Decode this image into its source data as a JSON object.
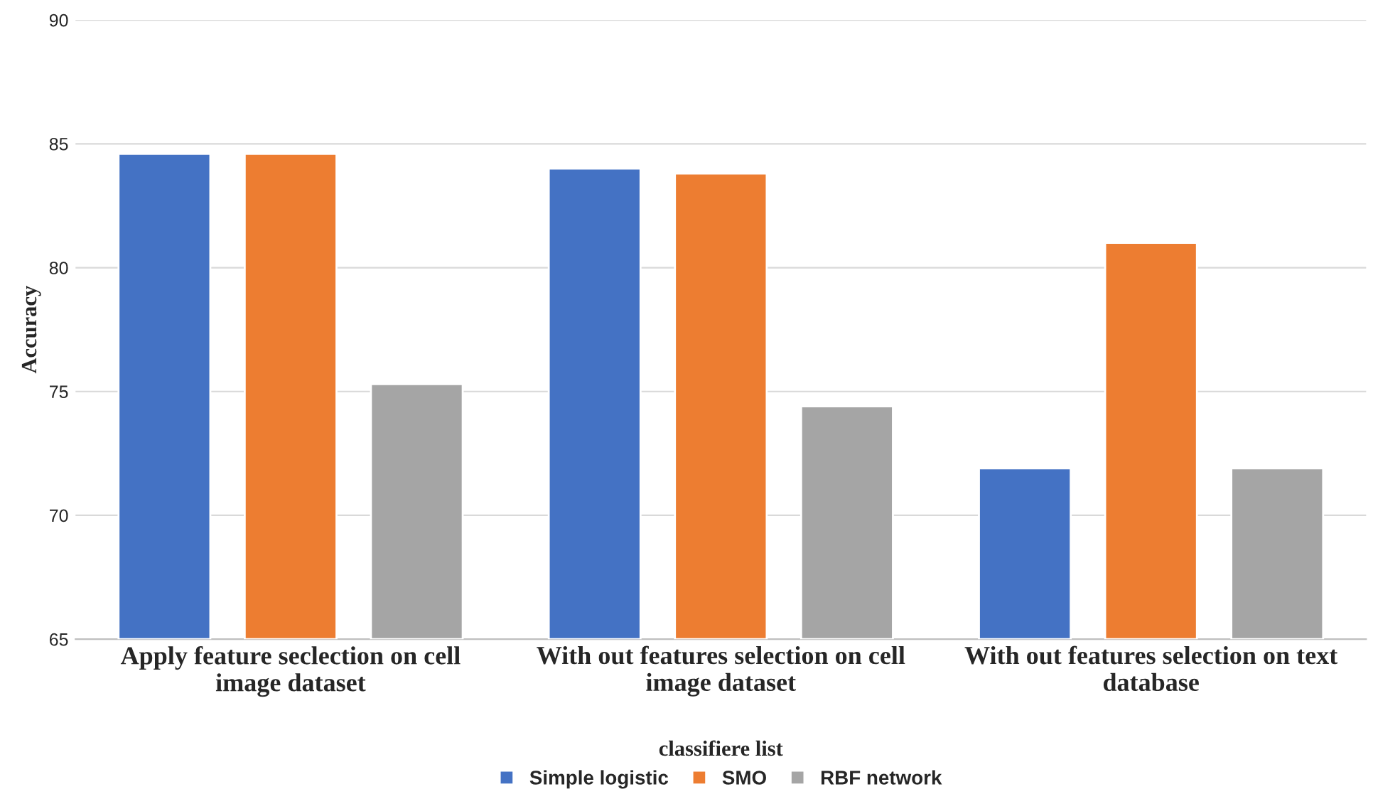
{
  "chart_data": {
    "type": "bar",
    "categories": [
      "Apply feature seclection on cell image dataset",
      "With out features selection on cell image dataset",
      "With out features selection on text database"
    ],
    "series": [
      {
        "name": "Simple logistic",
        "color": "#4472c4",
        "values": [
          84.6,
          84.0,
          71.9
        ]
      },
      {
        "name": "SMO",
        "color": "#ed7d31",
        "values": [
          84.6,
          83.8,
          81.0
        ]
      },
      {
        "name": "RBF network",
        "color": "#a5a5a5",
        "values": [
          75.3,
          74.4,
          71.9
        ]
      }
    ],
    "ylabel": "Accuracy",
    "legend_title": "classifiere list",
    "ylim": [
      65,
      90
    ],
    "yticks": [
      65,
      70,
      75,
      80,
      85,
      90
    ],
    "grid": "y",
    "legend": "bottom"
  }
}
